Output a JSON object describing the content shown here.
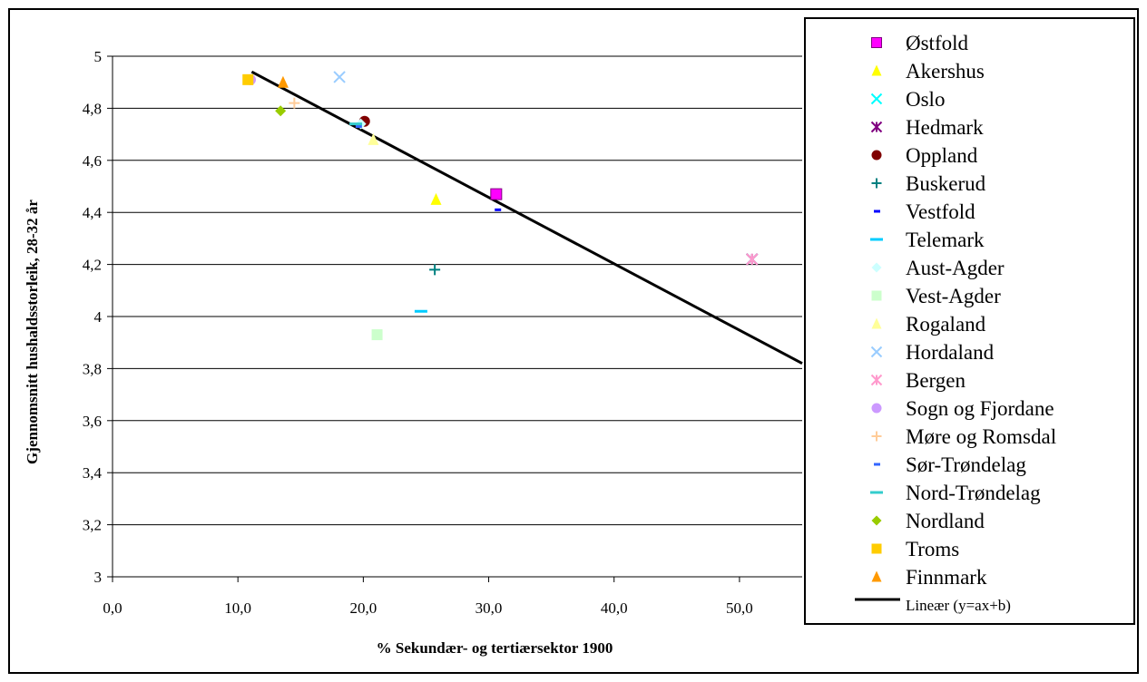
{
  "chart_data": {
    "type": "scatter",
    "xlabel": "% Sekundær- og tertiærsektor 1900",
    "ylabel": "Gjennomsnitt hushaldsstorleik, 28-32 år",
    "xlim": [
      0,
      55
    ],
    "ylim": [
      3,
      5
    ],
    "x_ticks": [
      "0,0",
      "10,0",
      "20,0",
      "30,0",
      "40,0",
      "50,0"
    ],
    "y_ticks": [
      "3",
      "3,2",
      "3,4",
      "3,6",
      "3,8",
      "4",
      "4,2",
      "4,4",
      "4,6",
      "4,8",
      "5"
    ],
    "grid": "horizontal",
    "legend_position": "right",
    "series": [
      {
        "name": "Østfold",
        "marker": "square",
        "color": "#ff00ff",
        "x": 30.6,
        "y": 4.47
      },
      {
        "name": "Akershus",
        "marker": "triangle",
        "color": "#ffff00",
        "x": 25.8,
        "y": 4.45
      },
      {
        "name": "Oslo",
        "marker": "x",
        "color": "#00ffff",
        "x": 51.0,
        "y": 4.22
      },
      {
        "name": "Hedmark",
        "marker": "star",
        "color": "#800080",
        "x": 51.0,
        "y": 4.22
      },
      {
        "name": "Oppland",
        "marker": "circle",
        "color": "#800000",
        "x": 20.1,
        "y": 4.75
      },
      {
        "name": "Buskerud",
        "marker": "plus",
        "color": "#008080",
        "x": 25.7,
        "y": 4.18
      },
      {
        "name": "Vestfold",
        "marker": "dash",
        "color": "#0000ff",
        "x": 30.7,
        "y": 4.41
      },
      {
        "name": "Telemark",
        "marker": "longdash",
        "color": "#00ccff",
        "x": 24.6,
        "y": 4.02
      },
      {
        "name": "Aust-Agder",
        "marker": "diamond",
        "color": "#ccffff",
        "x": 19.8,
        "y": 4.74
      },
      {
        "name": "Vest-Agder",
        "marker": "square",
        "color": "#ccffcc",
        "x": 21.1,
        "y": 3.93
      },
      {
        "name": "Rogaland",
        "marker": "triangle",
        "color": "#ffff99",
        "x": 20.8,
        "y": 4.68
      },
      {
        "name": "Hordaland",
        "marker": "x",
        "color": "#99ccff",
        "x": 18.1,
        "y": 4.92
      },
      {
        "name": "Bergen",
        "marker": "star",
        "color": "#ff99cc",
        "x": 51.0,
        "y": 4.22
      },
      {
        "name": "Sogn og Fjordane",
        "marker": "circle",
        "color": "#cc99ff",
        "x": 11.0,
        "y": 4.91
      },
      {
        "name": "Møre og Romsdal",
        "marker": "plus",
        "color": "#ffcc99",
        "x": 14.5,
        "y": 4.82
      },
      {
        "name": "Sør-Trøndelag",
        "marker": "dash",
        "color": "#3366ff",
        "x": 19.6,
        "y": 4.73
      },
      {
        "name": "Nord-Trøndelag",
        "marker": "longdash",
        "color": "#33cccc",
        "x": 19.4,
        "y": 4.74
      },
      {
        "name": "Nordland",
        "marker": "diamond",
        "color": "#99cc00",
        "x": 13.4,
        "y": 4.79
      },
      {
        "name": "Troms",
        "marker": "square",
        "color": "#ffcc00",
        "x": 10.8,
        "y": 4.91
      },
      {
        "name": "Finnmark",
        "marker": "triangle",
        "color": "#ff9900",
        "x": 13.6,
        "y": 4.9
      }
    ],
    "trendline": {
      "name": "Lineær (y=ax+b)",
      "x": [
        11.1,
        55
      ],
      "y": [
        4.94,
        3.82
      ],
      "color": "#000000"
    }
  }
}
